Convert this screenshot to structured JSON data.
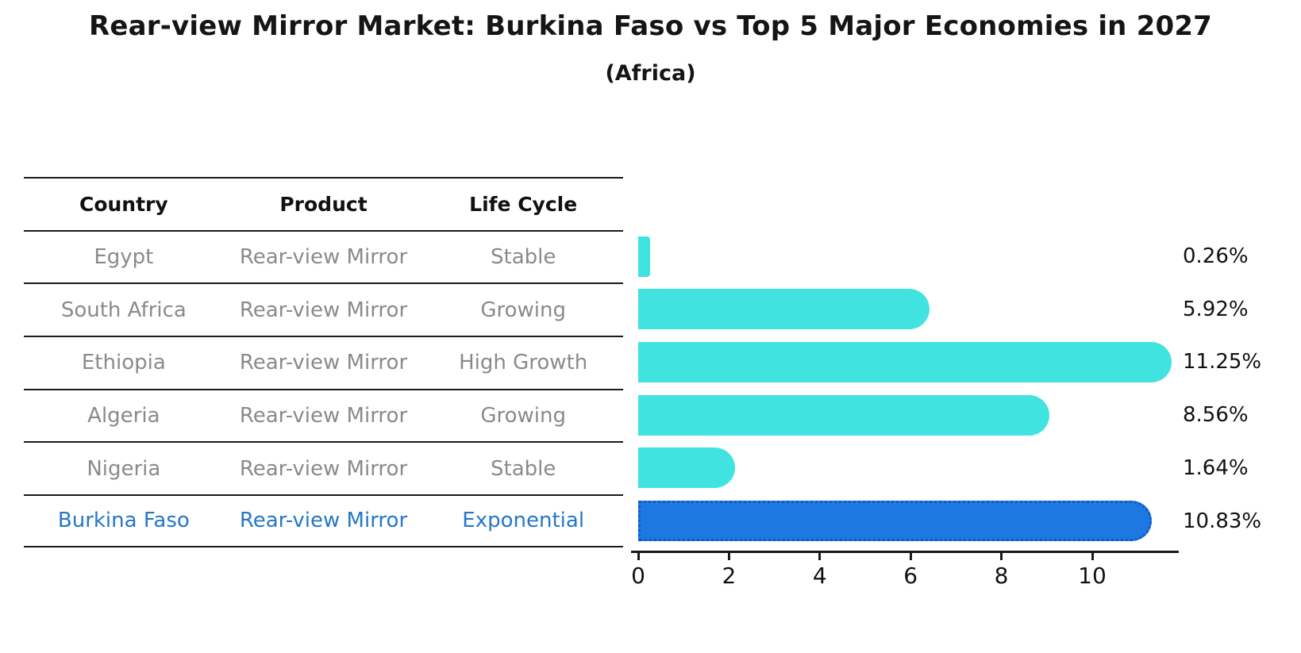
{
  "title": "Rear-view Mirror Market: Burkina Faso vs Top 5 Major Economies in 2027",
  "subtitle": "(Africa)",
  "table": {
    "headers": [
      "Country",
      "Product",
      "Life Cycle"
    ],
    "rows": [
      {
        "country": "Egypt",
        "product": "Rear-view Mirror",
        "life_cycle": "Stable",
        "highlight": false
      },
      {
        "country": "South Africa",
        "product": "Rear-view Mirror",
        "life_cycle": "Growing",
        "highlight": false
      },
      {
        "country": "Ethiopia",
        "product": "Rear-view Mirror",
        "life_cycle": "High Growth",
        "highlight": false
      },
      {
        "country": "Algeria",
        "product": "Rear-view Mirror",
        "life_cycle": "Growing",
        "highlight": false
      },
      {
        "country": "Nigeria",
        "product": "Rear-view Mirror",
        "life_cycle": "Stable",
        "highlight": true
      }
    ],
    "highlight_row": {
      "country": "Burkina Faso",
      "product": "Rear-view Mirror",
      "life_cycle": "Exponential"
    }
  },
  "chart_data": {
    "type": "bar",
    "orientation": "horizontal",
    "title": "Rear-view Mirror Market: Burkina Faso vs Top 5 Major Economies in 2027 (Africa)",
    "categories": [
      "Egypt",
      "South Africa",
      "Ethiopia",
      "Algeria",
      "Nigeria",
      "Burkina Faso"
    ],
    "values": [
      0.26,
      5.92,
      11.25,
      8.56,
      1.64,
      10.83
    ],
    "value_labels": [
      "0.26%",
      "5.92%",
      "11.25%",
      "8.56%",
      "1.64%",
      "10.83%"
    ],
    "highlight_index": 5,
    "x_ticks": [
      "0",
      "2",
      "4",
      "6",
      "8",
      "10"
    ],
    "x_tick_values": [
      0,
      2,
      4,
      6,
      8,
      10
    ],
    "xlim": [
      0,
      11.9
    ],
    "grid": false,
    "legend": false
  },
  "colors": {
    "bar_default": "#40e3e0",
    "bar_highlight_fill": "#1e78e1",
    "bar_highlight_border": "#1358c5",
    "highlight_text": "#2677c8",
    "table_text": "#8a8a8a",
    "heading_text": "#111111",
    "axis_line": "#1a1a1a"
  }
}
